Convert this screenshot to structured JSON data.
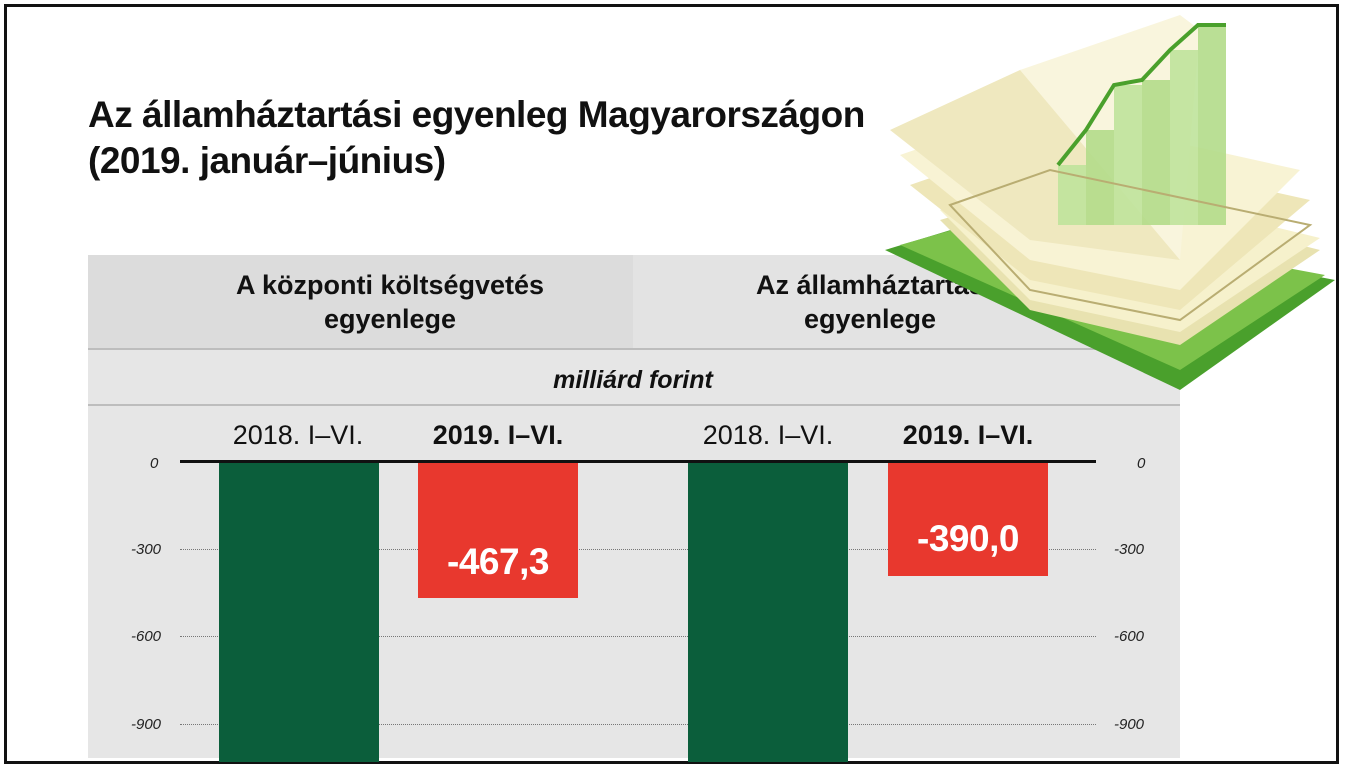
{
  "title_line1": "Az államháztartási egyenleg Magyarországon",
  "title_line2": "(2019. január–június)",
  "panels": [
    {
      "header_line1": "A központi költségvetés",
      "header_line2": "egyenlege"
    },
    {
      "header_line1": "Az államháztartás",
      "header_line2": "egyenlege"
    }
  ],
  "unit": "milliárd forint",
  "colors": {
    "green": "#0b5e3b",
    "red": "#e8382e",
    "panel": "#e6e6e6"
  },
  "chart_data": [
    {
      "type": "bar",
      "title": "A központi költségvetés egyenlege",
      "ylabel": "milliárd forint",
      "categories": [
        "2018. I–VI.",
        "2019. I–VI."
      ],
      "values": [
        null,
        -467.3
      ],
      "value_labels": [
        "",
        "-467,3"
      ],
      "note": "",
      "ylim": [
        -1000,
        0
      ],
      "yticks": [
        "0",
        "-300",
        "-600",
        "-900"
      ]
    },
    {
      "type": "bar",
      "title": "Az államháztartás egyenlege",
      "ylabel": "milliárd forint",
      "categories": [
        "2018. I–VI.",
        "2019. I–VI."
      ],
      "values": [
        null,
        -390.0
      ],
      "value_labels": [
        "",
        "-390,0"
      ],
      "ylim": [
        -1000,
        0
      ],
      "yticks": [
        "0",
        "-300",
        "-600",
        "-900"
      ]
    }
  ]
}
